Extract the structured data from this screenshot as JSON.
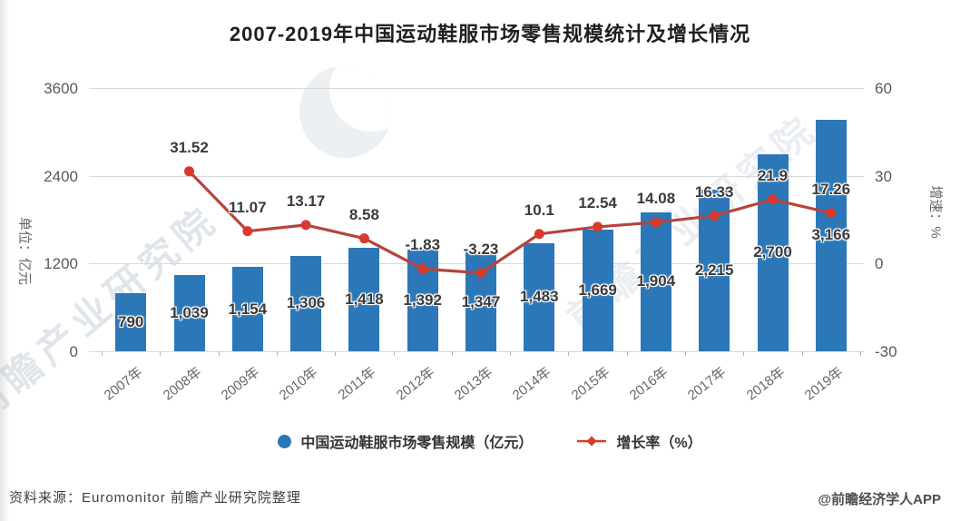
{
  "page": {
    "source_note": "资料来源：Euromonitor 前瞻产业研究院整理",
    "credit": "@前瞻经济学人APP",
    "watermark_text": "前瞻产业研究院"
  },
  "chart_data": {
    "type": "bar",
    "title": "2007-2019年中国运动鞋服市场零售规模统计及增长情况",
    "categories": [
      "2007年",
      "2008年",
      "2009年",
      "2010年",
      "2011年",
      "2012年",
      "2013年",
      "2014年",
      "2015年",
      "2016年",
      "2017年",
      "2018年",
      "2019年"
    ],
    "series": [
      {
        "name": "中国运动鞋服市场零售规模（亿元）",
        "type": "bar",
        "axis": "left",
        "values": [
          790,
          1039,
          1154,
          1306,
          1418,
          1392,
          1347,
          1483,
          1669,
          1904,
          2215,
          2700,
          3166
        ],
        "value_labels": [
          "790",
          "1,039",
          "1,154",
          "1,306",
          "1,418",
          "1,392",
          "1,347",
          "1,483",
          "1,669",
          "1,904",
          "2,215",
          "2,700",
          "3,166"
        ]
      },
      {
        "name": "增长率（%）",
        "type": "line",
        "axis": "right",
        "values": [
          null,
          31.52,
          11.07,
          13.17,
          8.58,
          -1.83,
          -3.23,
          10.1,
          12.54,
          14.08,
          16.33,
          21.9,
          17.26
        ],
        "value_labels": [
          null,
          "31.52",
          "11.07",
          "13.17",
          "8.58",
          "-1.83",
          "-3.23",
          "10.1",
          "12.54",
          "14.08",
          "16.33",
          "21.9",
          "17.26"
        ]
      }
    ],
    "left_axis": {
      "label": "单位：亿元",
      "range": [
        0,
        3600
      ],
      "ticks": [
        0,
        1200,
        2400,
        3600
      ]
    },
    "right_axis": {
      "label": "增速：%",
      "range": [
        -30,
        60
      ],
      "ticks": [
        -30,
        0,
        30,
        60
      ]
    },
    "grid": true,
    "legend_position": "bottom"
  },
  "colors": {
    "bar": "#2b77b8",
    "line": "#b5443c",
    "marker": "#d93a2c",
    "grid": "#d9d9d9",
    "axisText": "#595959",
    "labelText": "#3a3a3a",
    "titleText": "#1f1f1f"
  }
}
